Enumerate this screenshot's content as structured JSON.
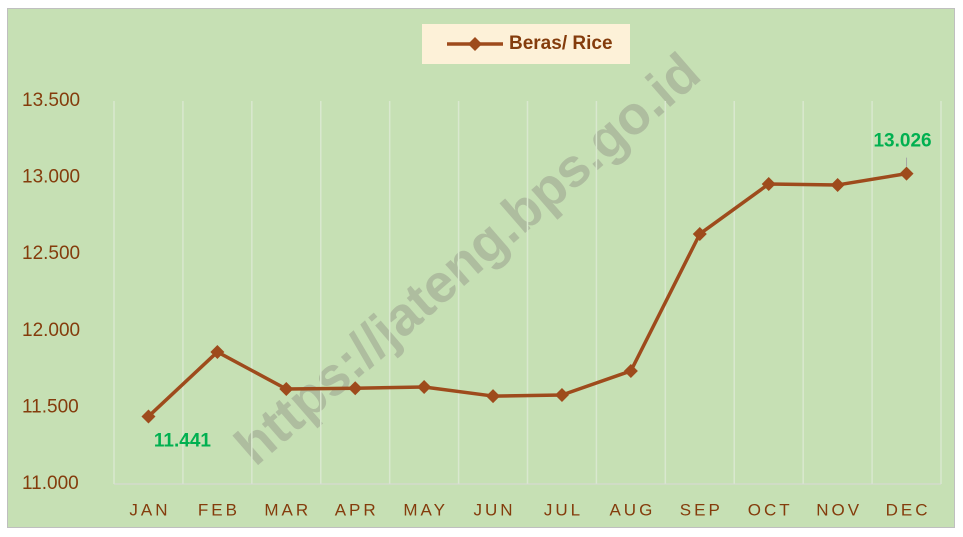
{
  "chart_data": {
    "type": "line",
    "watermark": "https://jateng.bps.go.id",
    "categories": [
      "JAN",
      "FEB",
      "MAR",
      "APR",
      "MAY",
      "JUN",
      "JUL",
      "AUG",
      "SEP",
      "OCT",
      "NOV",
      "DEC"
    ],
    "series": [
      {
        "name": "Beras/ Rice",
        "color": "#9e4b1c",
        "values": [
          11441,
          11862,
          11620,
          11625,
          11633,
          11574,
          11581,
          11738,
          12632,
          12958,
          12952,
          13026
        ],
        "value_labels": [
          "11.441",
          null,
          null,
          null,
          null,
          null,
          null,
          null,
          null,
          null,
          null,
          "13.026"
        ]
      }
    ],
    "ylim": [
      11000,
      13500
    ],
    "yticks": [
      {
        "value": 11000,
        "label": "11.000"
      },
      {
        "value": 11500,
        "label": "11.500"
      },
      {
        "value": 12000,
        "label": "12.000"
      },
      {
        "value": 12500,
        "label": "12.500"
      },
      {
        "value": 13000,
        "label": "13.000"
      },
      {
        "value": 13500,
        "label": "13.500"
      }
    ],
    "grid": "vertical",
    "legend": "top"
  }
}
